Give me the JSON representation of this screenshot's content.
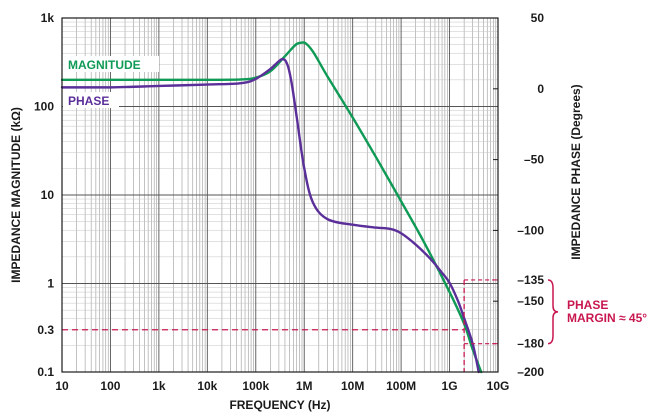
{
  "chart_data": {
    "type": "line",
    "xlabel": "FREQUENCY (Hz)",
    "ylabel_left": "IMPEDANCE MAGNITUDE (kΩ)",
    "ylabel_right": "IMPEDANCE PHASE (Degrees)",
    "x_scale": "log",
    "x_range": [
      10,
      10000000000
    ],
    "x_ticks": [
      {
        "value": 10,
        "label": "10"
      },
      {
        "value": 100,
        "label": "100"
      },
      {
        "value": 1000,
        "label": "1k"
      },
      {
        "value": 10000,
        "label": "10k"
      },
      {
        "value": 100000,
        "label": "100k"
      },
      {
        "value": 1000000,
        "label": "1M"
      },
      {
        "value": 10000000,
        "label": "10M"
      },
      {
        "value": 100000000,
        "label": "100M"
      },
      {
        "value": 1000000000,
        "label": "1G"
      },
      {
        "value": 10000000000,
        "label": "10G"
      }
    ],
    "y_left_scale": "log",
    "y_left_range": [
      0.1,
      1000
    ],
    "y_left_ticks": [
      {
        "value": 1000,
        "label": "1k",
        "color": "#1a1a1a"
      },
      {
        "value": 100,
        "label": "100",
        "color": "#1a1a1a"
      },
      {
        "value": 10,
        "label": "10",
        "color": "#1a1a1a"
      },
      {
        "value": 1,
        "label": "1",
        "color": "#1a1a1a"
      },
      {
        "value": 0.3,
        "label": "0.3",
        "color": "#c8174f"
      },
      {
        "value": 0.1,
        "label": "0.1",
        "color": "#1a1a1a"
      }
    ],
    "y_right_range": [
      -200,
      50
    ],
    "y_right_ticks": [
      {
        "value": 50,
        "label": "50",
        "color": "#1a1a1a"
      },
      {
        "value": 0,
        "label": "0",
        "color": "#1a1a1a"
      },
      {
        "value": -50,
        "label": "–50",
        "color": "#1a1a1a"
      },
      {
        "value": -100,
        "label": "–100",
        "color": "#1a1a1a"
      },
      {
        "value": -135,
        "label": "–135",
        "color": "#c8174f"
      },
      {
        "value": -150,
        "label": "–150",
        "color": "#1a1a1a"
      },
      {
        "value": -180,
        "label": "–180",
        "color": "#c8174f"
      },
      {
        "value": -200,
        "label": "–200",
        "color": "#1a1a1a"
      }
    ],
    "grid": true,
    "series": [
      {
        "name": "MAGNITUDE",
        "color": "#0f9a55",
        "axis": "left",
        "x": [
          10,
          100,
          1000,
          10000,
          50000,
          100000,
          200000,
          400000,
          700000,
          1000000,
          1500000,
          3000000,
          10000000,
          30000000,
          100000000,
          300000000,
          1000000000,
          2000000000,
          3000000000,
          4500000000
        ],
        "y": [
          200,
          200,
          200,
          200,
          202,
          212,
          250,
          370,
          510,
          530,
          420,
          220,
          75,
          27,
          8.5,
          2.9,
          0.8,
          0.35,
          0.18,
          0.1
        ]
      },
      {
        "name": "PHASE",
        "color": "#5b2f99",
        "axis": "right",
        "x": [
          10,
          100,
          1000,
          10000,
          50000,
          100000,
          200000,
          350000,
          450000,
          550000,
          700000,
          1000000,
          1500000,
          3000000,
          10000000,
          30000000,
          60000000,
          100000000,
          200000000,
          400000000,
          700000000,
          1000000000,
          1500000000,
          2000000000,
          3000000000,
          4000000000
        ],
        "y": [
          1,
          1,
          2,
          3,
          4,
          7,
          14,
          21,
          17,
          4,
          -20,
          -56,
          -80,
          -92,
          -96,
          -98,
          -99,
          -102,
          -110,
          -120,
          -130,
          -137,
          -150,
          -162,
          -180,
          -200
        ]
      }
    ],
    "legend": {
      "placement": "top-left",
      "entries": [
        "MAGNITUDE",
        "PHASE"
      ]
    },
    "annotation": {
      "lines": [
        "PHASE",
        "MARGIN ≈ 45°"
      ],
      "color": "#c8174f",
      "reference_magnitude": 0.3,
      "reference_frequency": 2000000000,
      "phase_from": -135,
      "phase_to": -180
    }
  }
}
